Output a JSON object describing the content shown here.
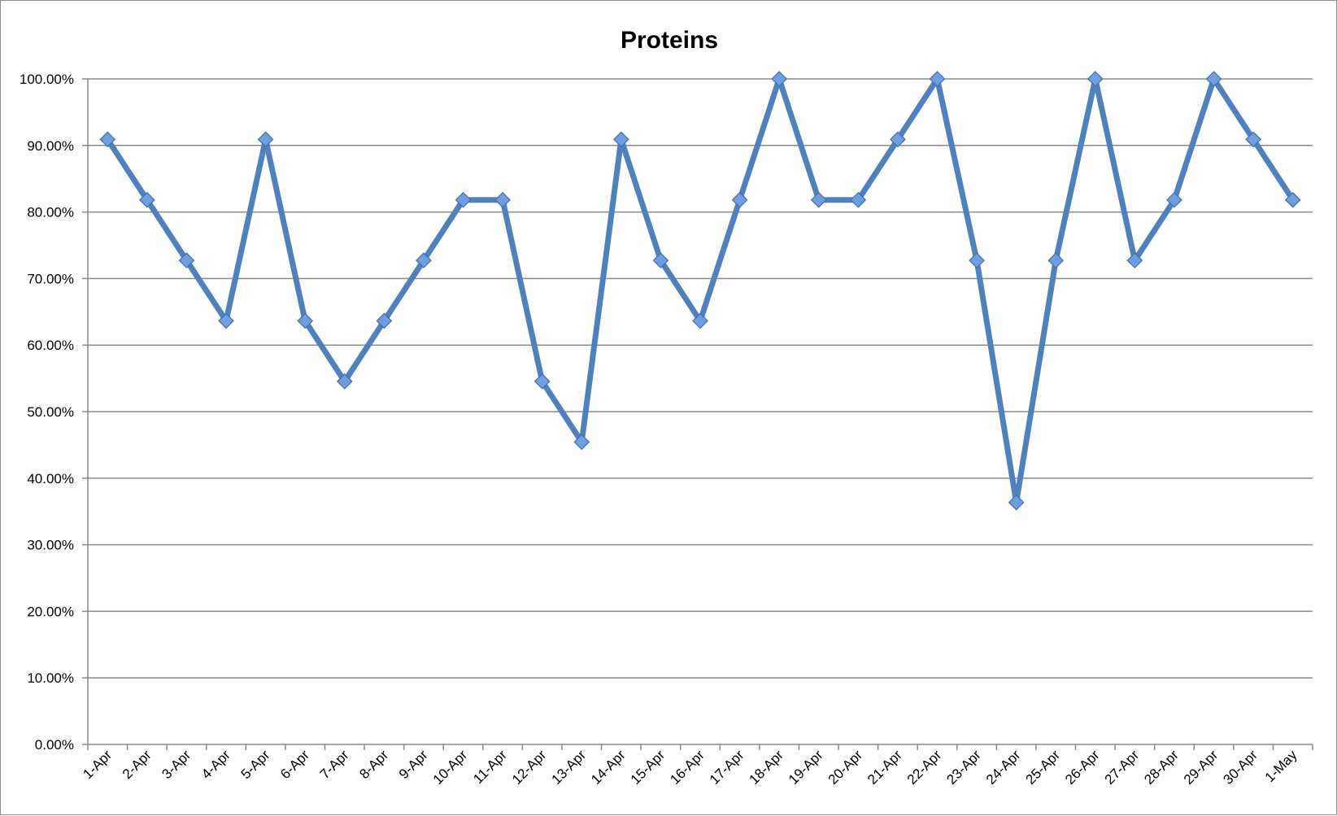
{
  "chart_data": {
    "type": "line",
    "title": "Proteins",
    "xlabel": "",
    "ylabel": "",
    "ylim": [
      0,
      100
    ],
    "y_ticks": [
      "0.00%",
      "10.00%",
      "20.00%",
      "30.00%",
      "40.00%",
      "50.00%",
      "60.00%",
      "70.00%",
      "80.00%",
      "90.00%",
      "100.00%"
    ],
    "y_tick_values": [
      0,
      10,
      20,
      30,
      40,
      50,
      60,
      70,
      80,
      90,
      100
    ],
    "grid": true,
    "legend": "none",
    "categories": [
      "1-Apr",
      "2-Apr",
      "3-Apr",
      "4-Apr",
      "5-Apr",
      "6-Apr",
      "7-Apr",
      "8-Apr",
      "9-Apr",
      "10-Apr",
      "11-Apr",
      "12-Apr",
      "13-Apr",
      "14-Apr",
      "15-Apr",
      "16-Apr",
      "17-Apr",
      "18-Apr",
      "19-Apr",
      "20-Apr",
      "21-Apr",
      "22-Apr",
      "23-Apr",
      "24-Apr",
      "25-Apr",
      "26-Apr",
      "27-Apr",
      "28-Apr",
      "29-Apr",
      "30-Apr",
      "1-May"
    ],
    "series": [
      {
        "values": [
          90.91,
          81.82,
          72.73,
          63.64,
          90.91,
          63.64,
          54.55,
          63.64,
          72.73,
          81.82,
          81.82,
          54.55,
          45.45,
          90.91,
          72.73,
          63.64,
          81.82,
          100.0,
          81.82,
          81.82,
          90.91,
          100.0,
          72.73,
          36.36,
          72.73,
          100.0,
          72.73,
          81.82,
          100.0,
          90.91,
          81.82
        ],
        "color": "#4f81bd",
        "marker": "diamond"
      }
    ]
  }
}
